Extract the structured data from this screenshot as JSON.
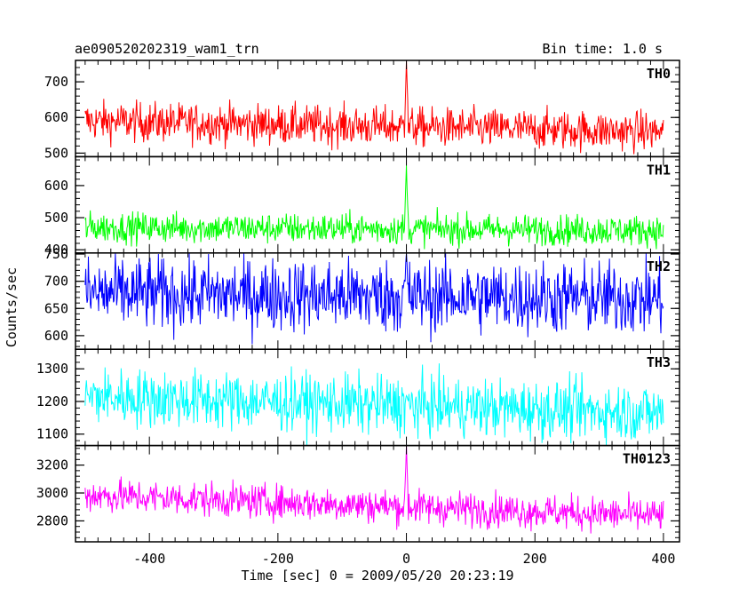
{
  "header": {
    "title": "ae090520202319_wam1_trn",
    "bin_time": "Bin time: 1.0 s"
  },
  "chart_data": {
    "type": "line",
    "title": "ae090520202319_wam1_trn",
    "subtitle": "Bin time: 1.0 s",
    "xlabel": "Time [sec] 0 = 2009/05/20 20:23:19",
    "ylabel": "Counts/sec",
    "xlim": [
      -515,
      425
    ],
    "x_range": [
      -500,
      400
    ],
    "x_step": 1,
    "xticks": [
      -400,
      -200,
      0,
      200,
      400
    ],
    "grid": false,
    "series": [
      {
        "name": "TH0",
        "color": "#ff0000",
        "ylim": [
          490,
          760
        ],
        "yticks": [
          500,
          600,
          700
        ],
        "start": 590,
        "end": 560,
        "noise": 28,
        "spike_peak": 765
      },
      {
        "name": "TH1",
        "color": "#00ff00",
        "ylim": [
          390,
          690
        ],
        "yticks": [
          400,
          500,
          600
        ],
        "start": 470,
        "end": 460,
        "noise": 24,
        "spike_peak": 675
      },
      {
        "name": "TH2",
        "color": "#0000ff",
        "ylim": [
          575,
          752
        ],
        "yticks": [
          600,
          650,
          700,
          750
        ],
        "start": 678,
        "end": 668,
        "noise": 34,
        "spike_peak": 752
      },
      {
        "name": "TH3",
        "color": "#00ffff",
        "ylim": [
          1065,
          1360
        ],
        "yticks": [
          1100,
          1200,
          1300
        ],
        "start": 1215,
        "end": 1165,
        "noise": 45,
        "spike_peak": 1215
      },
      {
        "name": "TH0123",
        "color": "#ff00ff",
        "ylim": [
          2650,
          3340
        ],
        "yticks": [
          2800,
          3000,
          3200
        ],
        "start": 2985,
        "end": 2835,
        "noise": 62,
        "spike_peak": 3340
      }
    ]
  }
}
